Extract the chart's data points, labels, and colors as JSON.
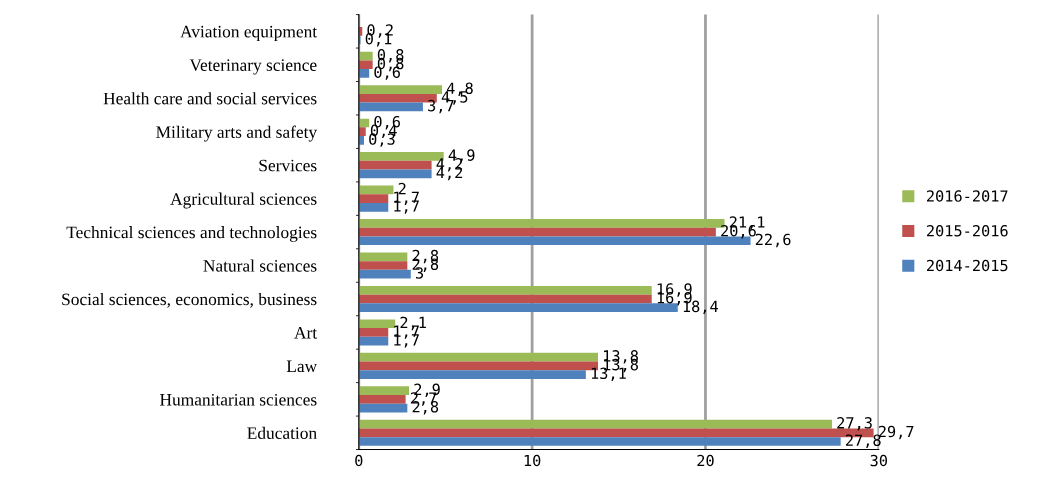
{
  "chart_data": {
    "type": "bar",
    "orientation": "horizontal",
    "categories": [
      "Aviation equipment",
      "Veterinary science",
      "Health care and social services",
      "Military arts and safety",
      "Services",
      "Agricultural sciences",
      "Technical sciences and technologies",
      "Natural sciences",
      "Social sciences, economics, business",
      "Art",
      "Law",
      "Humanitarian sciences",
      "Education"
    ],
    "series": [
      {
        "name": "2016-2017",
        "color": "#9bbb59",
        "values": [
          null,
          0.8,
          4.8,
          0.6,
          4.9,
          2,
          21.1,
          2.8,
          16.9,
          2.1,
          13.8,
          2.9,
          27.3
        ],
        "value_labels": [
          null,
          "0,8",
          "4,8",
          "0,6",
          "4,9",
          "2",
          "21,1",
          "2,8",
          "16,9",
          "2,1",
          "13,8",
          "2,9",
          "27,3"
        ]
      },
      {
        "name": "2015-2016",
        "color": "#c0504d",
        "values": [
          0.2,
          0.8,
          4.5,
          0.4,
          4.2,
          1.7,
          20.6,
          2.8,
          16.9,
          1.7,
          13.8,
          2.7,
          29.7
        ],
        "value_labels": [
          "0,2",
          "0,8",
          "4,5",
          "0,4",
          "4,2",
          "1,7",
          "20,6",
          "2,8",
          "16,9",
          "1,7",
          "13,8",
          "2,7",
          "29,7"
        ]
      },
      {
        "name": "2014-2015",
        "color": "#4f81bd",
        "values": [
          0.1,
          0.6,
          3.7,
          0.3,
          4.2,
          1.7,
          22.6,
          3,
          18.4,
          1.7,
          13.1,
          2.8,
          27.8
        ],
        "value_labels": [
          "0,1",
          "0,6",
          "3,7",
          "0,3",
          "4,2",
          "1,7",
          "22,6",
          "3",
          "18,4",
          "1,7",
          "13,1",
          "2,8",
          "27,8"
        ]
      }
    ],
    "xlim": [
      0,
      30
    ],
    "xticks": [
      0,
      10,
      20,
      30
    ],
    "grid": "x",
    "legend": "right"
  }
}
